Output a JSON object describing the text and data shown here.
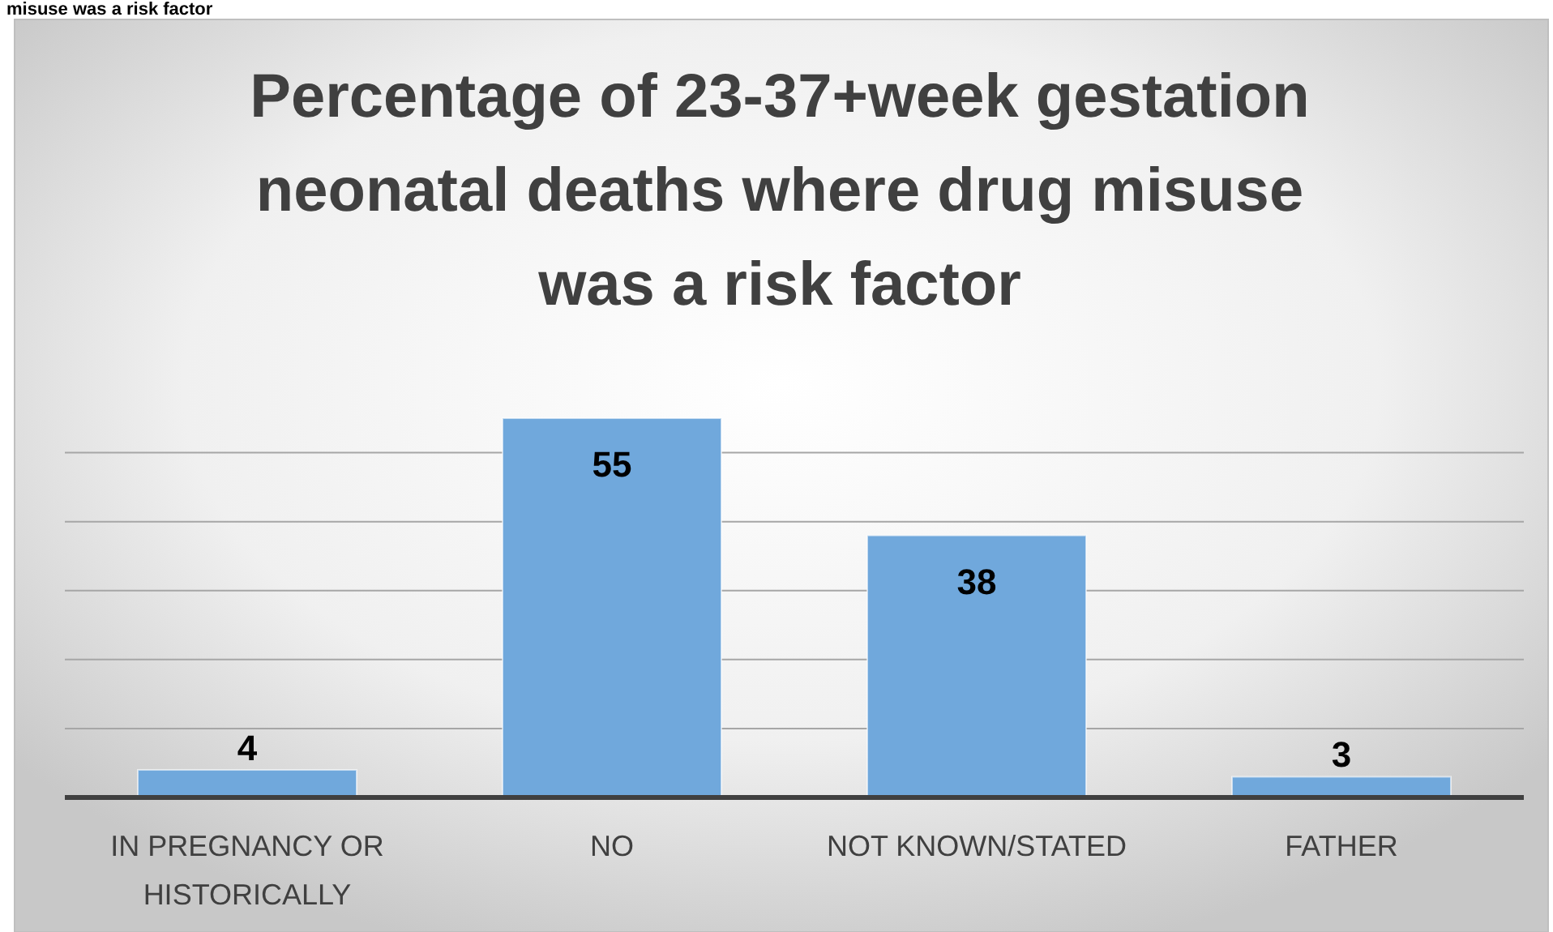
{
  "chart_data": {
    "type": "bar",
    "title": "Percentage of 23-37+week gestation neonatal deaths where drug misuse was a risk factor",
    "annotations": [
      "misuse was a risk factor"
    ],
    "categories": [
      "IN PREGNANCY OR HISTORICALLY",
      "NO",
      "NOT KNOWN/STATED",
      "FATHER"
    ],
    "values": [
      4,
      55,
      38,
      3
    ],
    "color": "#70a8dc",
    "yticks": [
      {
        "value": 0,
        "label": null
      },
      {
        "value": 10,
        "label": null
      },
      {
        "value": 20,
        "label": null
      },
      {
        "value": 30,
        "label": null
      },
      {
        "value": 40,
        "label": null
      },
      {
        "value": 50,
        "label": null
      }
    ],
    "grid": "y",
    "tick_labels": "x",
    "data_labels": true
  }
}
